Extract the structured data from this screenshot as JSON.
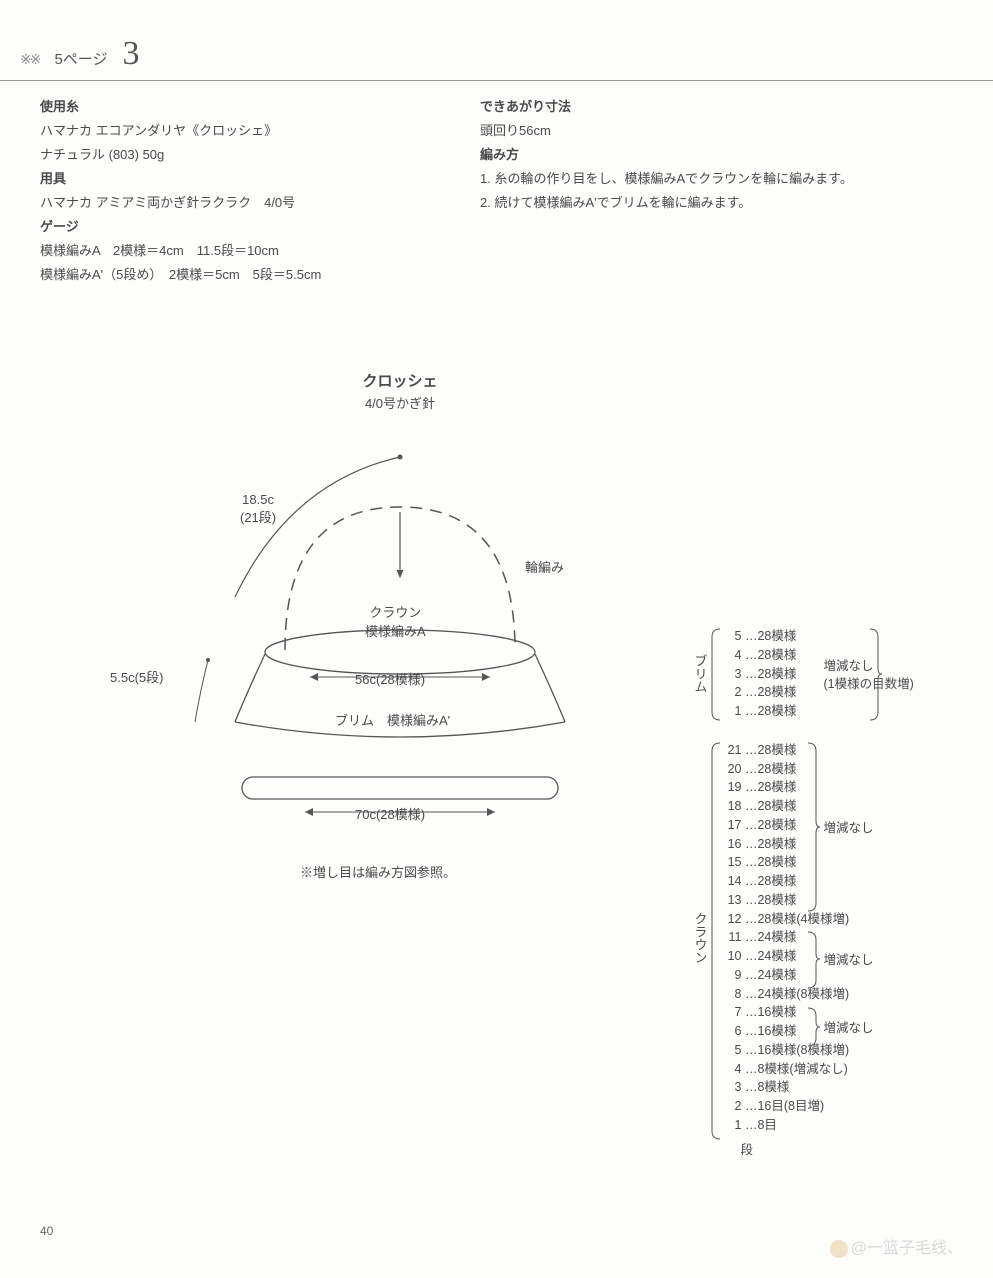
{
  "header": {
    "marker": "※※",
    "page_ref": "5ページ",
    "big_num": "3"
  },
  "info_left": {
    "yarn_head": "使用糸",
    "yarn_line1": "ハマナカ エコアンダリヤ《クロッシェ》",
    "yarn_line2": "ナチュラル (803) 50g",
    "tool_head": "用具",
    "tool_line": "ハマナカ アミアミ両かぎ針ラクラク　4/0号",
    "gauge_head": "ゲージ",
    "gauge_line1": "模様編みA　2模様＝4cm　11.5段＝10cm",
    "gauge_line2": "模様編みA'（5段め）　2模様＝5cm　5段＝5.5cm"
  },
  "info_right": {
    "size_head": "できあがり寸法",
    "size_line": "頭回り56cm",
    "how_head": "編み方",
    "how_1": "1. 糸の輪の作り目をし、模様編みAでクラウンを輪に編みます。",
    "how_2": "2. 続けて模様編みA'でブリムを輪に編みます。"
  },
  "diagram": {
    "title": "クロッシェ",
    "subtitle": "4/0号かぎ針",
    "label_185c": "18.5c",
    "label_21dan": "(21段)",
    "label_waami": "輪編み",
    "label_crown": "クラウン",
    "label_moyoA": "模様編みA",
    "label_55c": "5.5c(5段)",
    "label_56c": "56c(28模様)",
    "label_brim": "ブリム　模様編みA'",
    "label_70c": "70c(28模様)",
    "note": "※増し目は編み方図参照。"
  },
  "tables": {
    "brim_label": "ブリム",
    "crown_label": "クラウン",
    "dan_label": "段",
    "brim_rows": [
      {
        "n": "5",
        "txt": "…28模様"
      },
      {
        "n": "4",
        "txt": "…28模様"
      },
      {
        "n": "3",
        "txt": "…28模様"
      },
      {
        "n": "2",
        "txt": "…28模様"
      },
      {
        "n": "1",
        "txt": "…28模様"
      }
    ],
    "brim_note1": "増減なし",
    "brim_note2": "(1模様の目数増)",
    "crown_rows": [
      {
        "n": "21",
        "txt": "…28模様"
      },
      {
        "n": "20",
        "txt": "…28模様"
      },
      {
        "n": "19",
        "txt": "…28模様"
      },
      {
        "n": "18",
        "txt": "…28模様"
      },
      {
        "n": "17",
        "txt": "…28模様"
      },
      {
        "n": "16",
        "txt": "…28模様"
      },
      {
        "n": "15",
        "txt": "…28模様"
      },
      {
        "n": "14",
        "txt": "…28模様"
      },
      {
        "n": "13",
        "txt": "…28模様"
      },
      {
        "n": "12",
        "txt": "…28模様(4模様増)"
      },
      {
        "n": "11",
        "txt": "…24模様"
      },
      {
        "n": "10",
        "txt": "…24模様"
      },
      {
        "n": "9",
        "txt": "…24模様"
      },
      {
        "n": "8",
        "txt": "…24模様(8模様増)"
      },
      {
        "n": "7",
        "txt": "…16模様"
      },
      {
        "n": "6",
        "txt": "…16模様"
      },
      {
        "n": "5",
        "txt": "…16模様(8模様増)"
      },
      {
        "n": "4",
        "txt": "…8模様(増減なし)"
      },
      {
        "n": "3",
        "txt": "…8模様"
      },
      {
        "n": "2",
        "txt": "…16目(8目増)"
      },
      {
        "n": "1",
        "txt": "…8目"
      }
    ],
    "crown_note1": "増減なし",
    "crown_note2": "増減なし",
    "crown_note3": "増減なし"
  },
  "footer": {
    "page": "40",
    "watermark": "@一篮子毛线、"
  },
  "style": {
    "text_color": "#4a4a4a",
    "line_color": "#555555",
    "bg": "#fdfdfc",
    "font_size_body": 13,
    "font_size_title": 15
  }
}
